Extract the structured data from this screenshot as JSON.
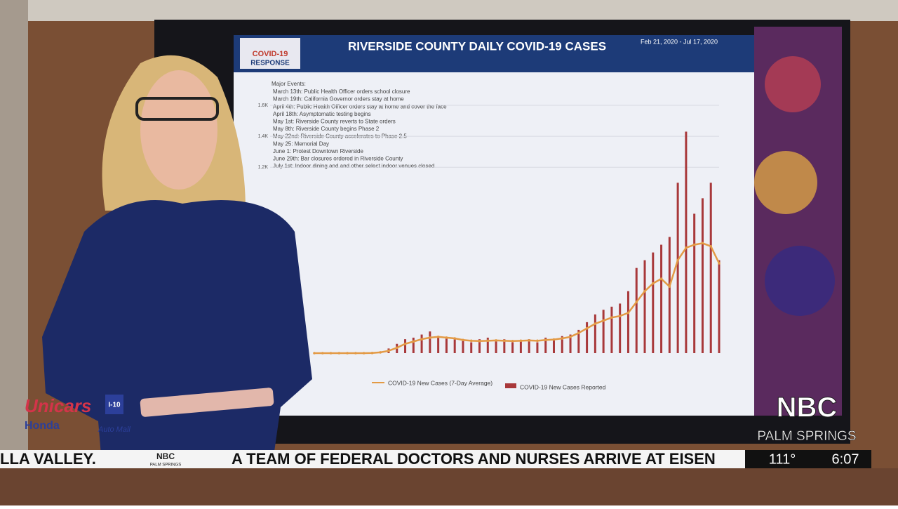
{
  "screen": {
    "title": "RIVERSIDE COUNTY DAILY COVID-19 CASES",
    "date_range": "Feb 21, 2020 - Jul 17, 2020",
    "logo": "COVID-19",
    "logo_sub": "RESPONSE",
    "events_title": "Major Events:",
    "events": [
      "March 13th: Public Health Officer orders school closure",
      "March 19th: California Governor orders stay at home",
      "April 4th: Public Health Officer orders stay at home and cover the face",
      "April 18th: Asymptomatic testing begins",
      "May 1st: Riverside County reverts to State orders",
      "May 8th: Riverside County begins Phase 2",
      "May 22nd: Riverside County accelerates to Phase 2.5",
      "May 25: Memorial Day",
      "June 1: Protest Downtown Riverside",
      "June 29th: Bar closures ordered in Riverside County",
      "July 1st: Indoor dining and and other select indoor venues closed"
    ]
  },
  "chart_data": {
    "type": "bar",
    "ylim": [
      0,
      1600
    ],
    "yticks": [
      {
        "value": 1200,
        "label": "1.2K"
      },
      {
        "value": 1400,
        "label": "1.4K"
      },
      {
        "value": 1600,
        "label": "1.6K"
      }
    ],
    "grid": true,
    "series": [
      {
        "name": "COVID-19 New Cases Reported",
        "color": "#a8383a",
        "values": [
          0,
          0,
          0,
          0,
          0,
          0,
          0,
          2,
          10,
          30,
          60,
          90,
          100,
          120,
          140,
          110,
          100,
          90,
          80,
          70,
          90,
          100,
          80,
          90,
          70,
          80,
          90,
          70,
          100,
          90,
          110,
          120,
          150,
          200,
          250,
          280,
          300,
          320,
          400,
          550,
          600,
          650,
          700,
          750,
          1100,
          1430,
          900,
          1000,
          1100,
          600
        ]
      },
      {
        "name": "COVID-19 New Cases (7-Day Average)",
        "color": "#e39a45",
        "values": [
          0,
          0,
          0,
          0,
          0,
          0,
          0,
          1,
          5,
          15,
          35,
          60,
          75,
          90,
          100,
          105,
          100,
          95,
          85,
          80,
          78,
          80,
          82,
          80,
          78,
          80,
          82,
          80,
          85,
          88,
          95,
          105,
          130,
          160,
          190,
          210,
          230,
          240,
          260,
          330,
          400,
          450,
          480,
          430,
          600,
          680,
          700,
          710,
          690,
          580
        ]
      }
    ]
  },
  "ticker": {
    "left": "LLA VALLEY.",
    "brand": "NBC",
    "brand_sub": "PALM SPRINGS",
    "headline": "A TEAM OF FEDERAL DOCTORS AND NURSES ARRIVE AT EISEN",
    "temperature": "111°",
    "time": "6:07"
  },
  "station": {
    "name": "NBC",
    "city": "PALM SPRINGS"
  },
  "sponsor": {
    "name": "Unicars",
    "make": "Honda",
    "route": "I-10",
    "mall": "Auto Mall"
  }
}
